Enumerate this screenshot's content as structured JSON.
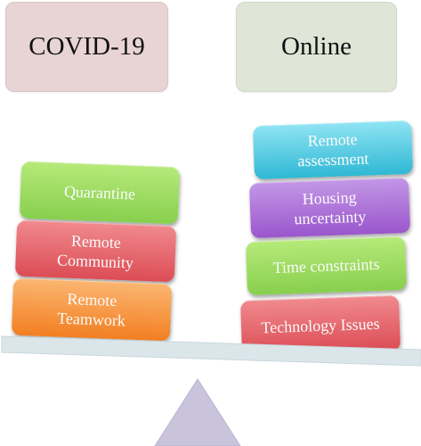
{
  "headers": {
    "left": "COVID-19",
    "right": "Online"
  },
  "left_blocks": [
    {
      "label": "Quarantine"
    },
    {
      "label": "Remote Community"
    },
    {
      "label": "Remote Teamwork"
    }
  ],
  "right_blocks": [
    {
      "label": "Remote assessment"
    },
    {
      "label": "Housing uncertainty"
    },
    {
      "label": "Time constraints"
    },
    {
      "label": "Technology Issues"
    }
  ],
  "colors": {
    "header_left": "#e8d4d5",
    "header_right": "#dfe6d8",
    "beam": "#dbe6ea",
    "fulcrum": "#c9c4dc"
  }
}
